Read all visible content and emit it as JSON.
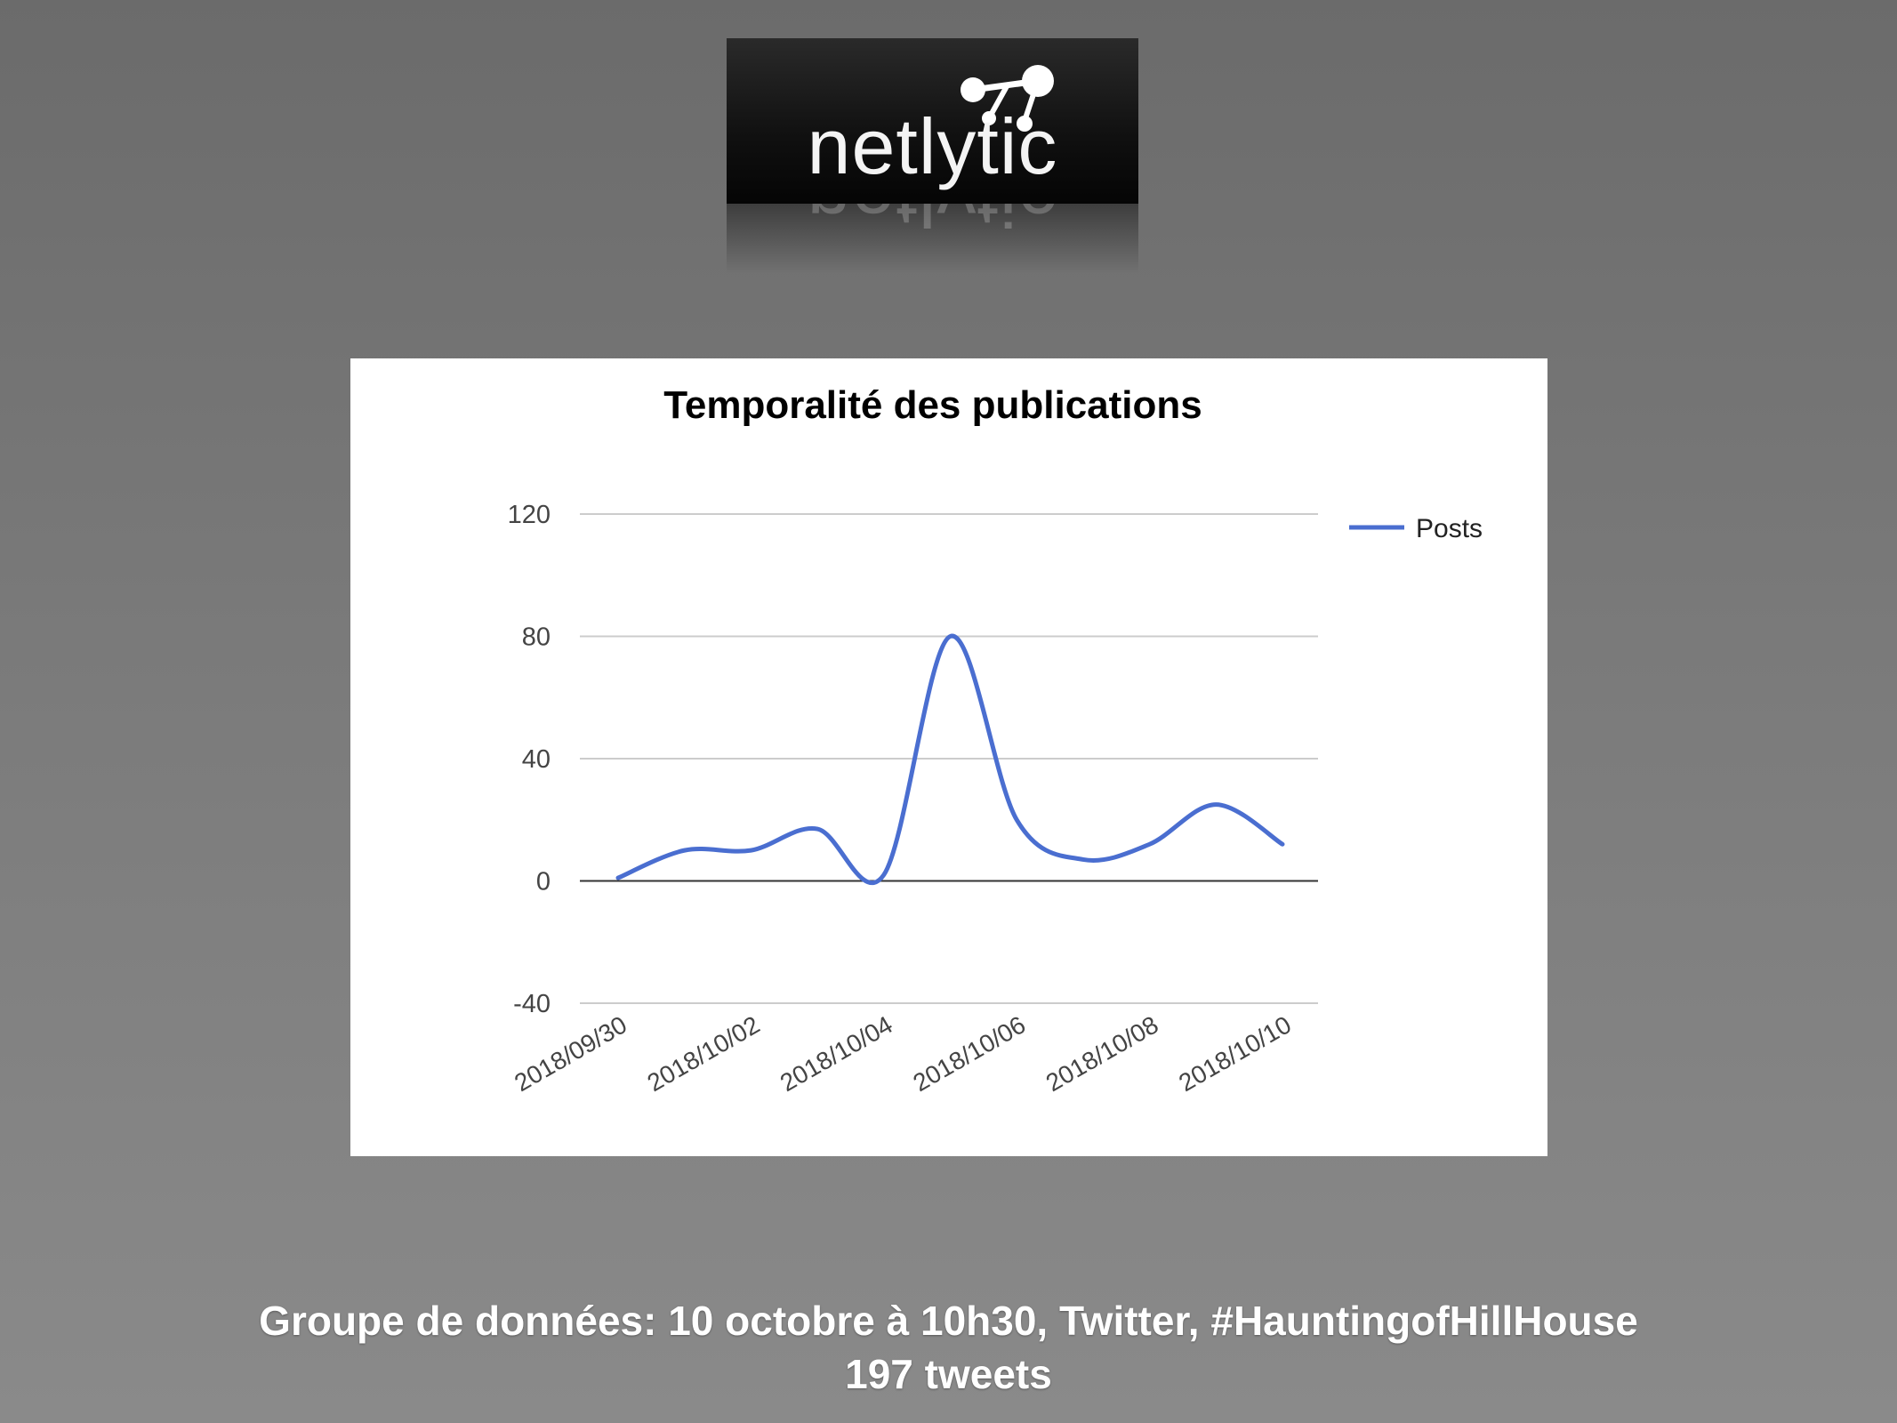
{
  "logo": {
    "text": "netlytic"
  },
  "chart_data": {
    "type": "line",
    "title": "Temporalité des publications",
    "x": [
      "2018/09/30",
      "2018/10/01",
      "2018/10/02",
      "2018/10/03",
      "2018/10/04",
      "2018/10/05",
      "2018/10/06",
      "2018/10/07",
      "2018/10/08",
      "2018/10/09",
      "2018/10/10"
    ],
    "x_tick_labels": [
      "2018/09/30",
      "2018/10/02",
      "2018/10/04",
      "2018/10/06",
      "2018/10/08",
      "2018/10/10"
    ],
    "series": [
      {
        "name": "Posts",
        "values": [
          1,
          10,
          10,
          17,
          2,
          80,
          20,
          7,
          12,
          25,
          12
        ],
        "color": "#4a6ed0"
      }
    ],
    "y_ticks": [
      -40,
      0,
      40,
      80,
      120
    ],
    "ylim": [
      -40,
      120
    ],
    "grid": true,
    "legend": "right"
  },
  "footer": {
    "line1": "Groupe de données: 10 octobre à 10h30, Twitter, #HauntingofHillHouse",
    "line2": "197 tweets"
  }
}
